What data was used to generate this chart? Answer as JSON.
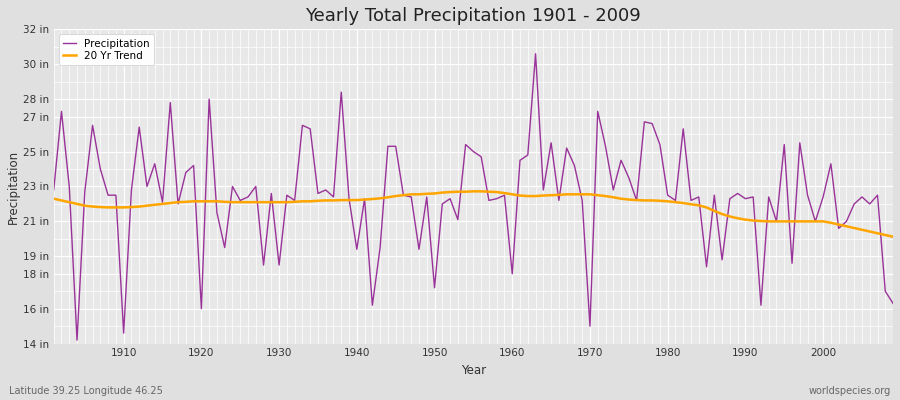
{
  "title": "Yearly Total Precipitation 1901 - 2009",
  "xlabel": "Year",
  "ylabel": "Precipitation",
  "subtitle": "Latitude 39.25 Longitude 46.25",
  "watermark": "worldspecies.org",
  "ylim": [
    14,
    32
  ],
  "yticks": [
    14,
    16,
    18,
    19,
    21,
    23,
    25,
    27,
    28,
    30,
    32
  ],
  "ytick_labels": [
    "14 in",
    "16 in",
    "18 in",
    "19 in",
    "21 in",
    "23 in",
    "25 in",
    "27 in",
    "28 in",
    "30 in",
    "32 in"
  ],
  "precip_color": "#993399",
  "trend_color": "#FFA500",
  "fig_bg_color": "#E0E0E0",
  "plot_bg_color": "#E8E8E8",
  "grid_color": "#FFFFFF",
  "years": [
    1901,
    1902,
    1903,
    1904,
    1905,
    1906,
    1907,
    1908,
    1909,
    1910,
    1911,
    1912,
    1913,
    1914,
    1915,
    1916,
    1917,
    1918,
    1919,
    1920,
    1921,
    1922,
    1923,
    1924,
    1925,
    1926,
    1927,
    1928,
    1929,
    1930,
    1931,
    1932,
    1933,
    1934,
    1935,
    1936,
    1937,
    1938,
    1939,
    1940,
    1941,
    1942,
    1943,
    1944,
    1945,
    1946,
    1947,
    1948,
    1949,
    1950,
    1951,
    1952,
    1953,
    1954,
    1955,
    1956,
    1957,
    1958,
    1959,
    1960,
    1961,
    1962,
    1963,
    1964,
    1965,
    1966,
    1967,
    1968,
    1969,
    1970,
    1971,
    1972,
    1973,
    1974,
    1975,
    1976,
    1977,
    1978,
    1979,
    1980,
    1981,
    1982,
    1983,
    1984,
    1985,
    1986,
    1987,
    1988,
    1989,
    1990,
    1991,
    1992,
    1993,
    1994,
    1995,
    1996,
    1997,
    1998,
    1999,
    2000,
    2001,
    2002,
    2003,
    2004,
    2005,
    2006,
    2007,
    2008,
    2009
  ],
  "precip": [
    22.8,
    27.3,
    23.0,
    14.2,
    22.7,
    26.5,
    24.0,
    22.5,
    22.5,
    14.6,
    22.8,
    26.4,
    23.0,
    24.3,
    22.1,
    27.8,
    22.0,
    23.8,
    24.2,
    16.0,
    28.0,
    21.5,
    19.5,
    23.0,
    22.2,
    22.4,
    23.0,
    18.5,
    22.6,
    18.5,
    22.5,
    22.2,
    26.5,
    26.3,
    22.6,
    22.8,
    22.4,
    28.4,
    22.3,
    19.4,
    22.3,
    16.2,
    19.5,
    25.3,
    25.3,
    22.5,
    22.4,
    19.4,
    22.4,
    17.2,
    22.0,
    22.3,
    21.1,
    25.4,
    25.0,
    24.7,
    22.2,
    22.3,
    22.5,
    18.0,
    24.5,
    24.8,
    30.6,
    22.8,
    25.5,
    22.2,
    25.2,
    24.2,
    22.2,
    15.0,
    27.3,
    25.3,
    22.8,
    24.5,
    23.5,
    22.2,
    26.7,
    26.6,
    25.4,
    22.5,
    22.2,
    26.3,
    22.2,
    22.4,
    18.4,
    22.5,
    18.8,
    22.3,
    22.6,
    22.3,
    22.4,
    16.2,
    22.4,
    21.0,
    25.4,
    18.6,
    25.5,
    22.5,
    21.0,
    22.4,
    24.3,
    20.6,
    21.0,
    22.0,
    22.4,
    22.0,
    22.5,
    17.0,
    16.3
  ],
  "trend": [
    22.3,
    22.2,
    22.1,
    22.0,
    21.9,
    21.85,
    21.82,
    21.8,
    21.8,
    21.8,
    21.82,
    21.85,
    21.9,
    21.95,
    22.0,
    22.05,
    22.1,
    22.12,
    22.15,
    22.15,
    22.15,
    22.15,
    22.12,
    22.1,
    22.1,
    22.1,
    22.1,
    22.1,
    22.1,
    22.1,
    22.1,
    22.12,
    22.15,
    22.15,
    22.18,
    22.2,
    22.2,
    22.22,
    22.22,
    22.22,
    22.25,
    22.28,
    22.32,
    22.38,
    22.45,
    22.5,
    22.55,
    22.55,
    22.58,
    22.6,
    22.65,
    22.68,
    22.7,
    22.7,
    22.72,
    22.72,
    22.7,
    22.68,
    22.62,
    22.55,
    22.48,
    22.45,
    22.45,
    22.48,
    22.5,
    22.52,
    22.55,
    22.55,
    22.55,
    22.55,
    22.5,
    22.45,
    22.38,
    22.3,
    22.25,
    22.22,
    22.2,
    22.2,
    22.18,
    22.15,
    22.1,
    22.05,
    21.98,
    21.92,
    21.8,
    21.6,
    21.42,
    21.28,
    21.18,
    21.1,
    21.05,
    21.02,
    21.0,
    21.0,
    21.0,
    21.0,
    21.0,
    21.0,
    21.0,
    21.0,
    20.92,
    20.82,
    20.72,
    20.62,
    20.52,
    20.42,
    20.32,
    20.22,
    20.12
  ]
}
